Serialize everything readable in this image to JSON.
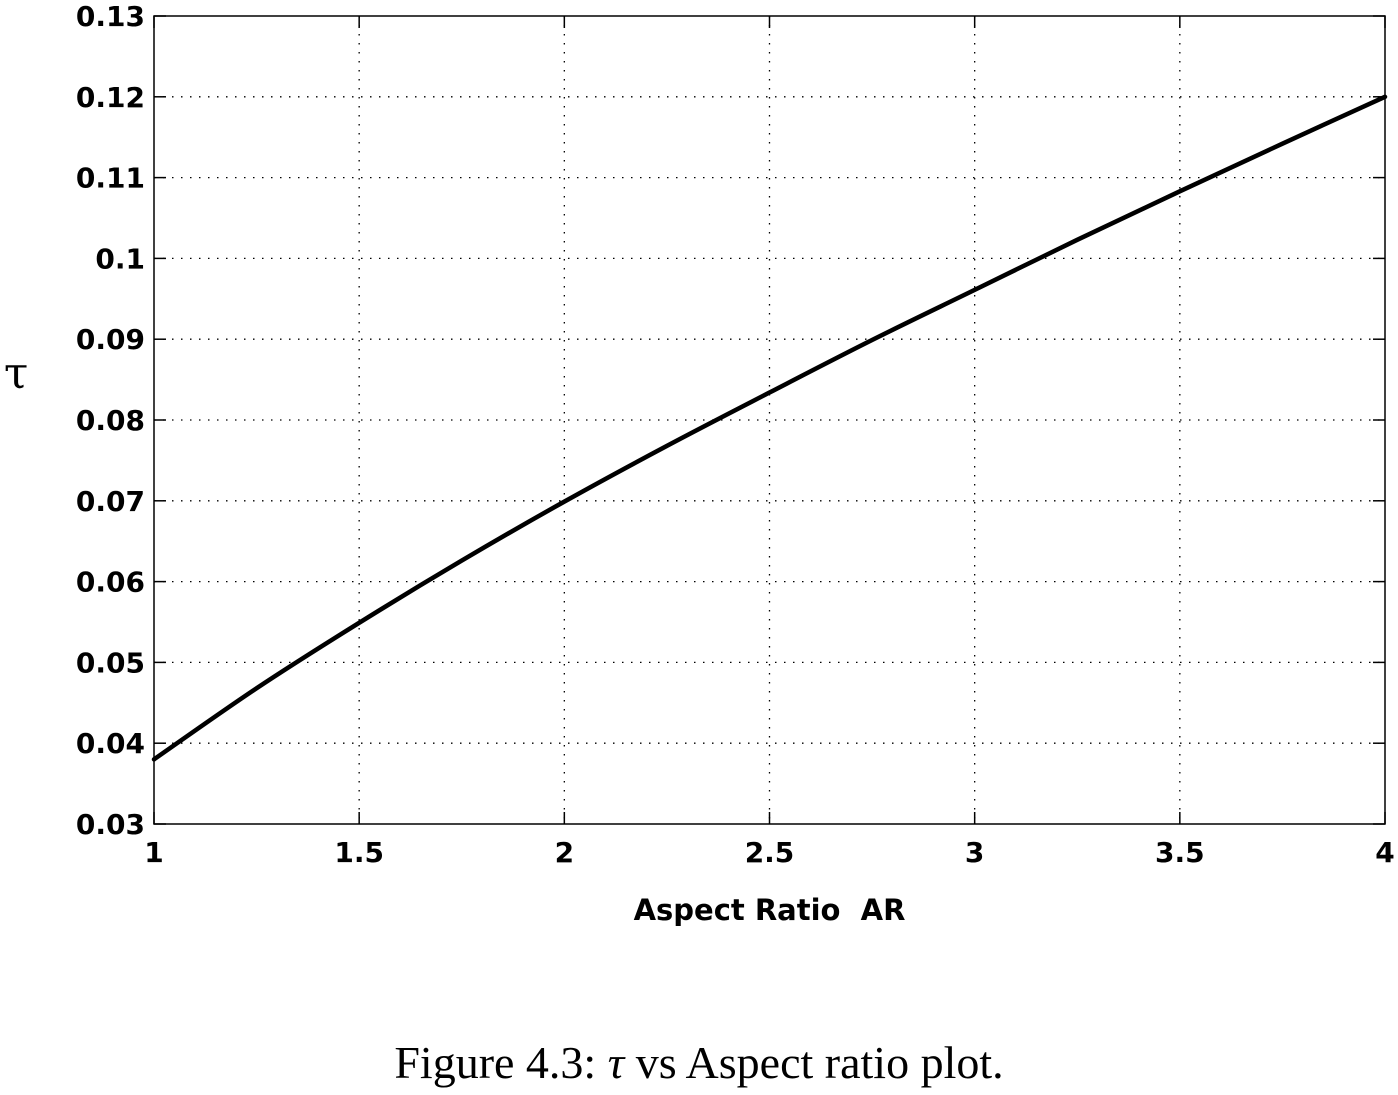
{
  "chart_data": {
    "type": "line",
    "title": "",
    "xlabel": "Aspect Ratio  AR",
    "ylabel": "τ",
    "xlim": [
      1,
      4
    ],
    "ylim": [
      0.03,
      0.13
    ],
    "xticks": [
      1,
      1.5,
      2,
      2.5,
      3,
      3.5,
      4
    ],
    "xtick_labels": [
      "1",
      "1.5",
      "2",
      "2.5",
      "3",
      "3.5",
      "4"
    ],
    "yticks": [
      0.03,
      0.04,
      0.05,
      0.06,
      0.07,
      0.08,
      0.09,
      0.1,
      0.11,
      0.12,
      0.13
    ],
    "ytick_labels": [
      "0.03",
      "0.04",
      "0.05",
      "0.06",
      "0.07",
      "0.08",
      "0.09",
      "0.1",
      "0.11",
      "0.12",
      "0.13"
    ],
    "grid": true,
    "series": [
      {
        "color": "#000000",
        "x": [
          1,
          1.25,
          1.5,
          1.75,
          2,
          2.25,
          2.5,
          2.75,
          3,
          3.25,
          3.5,
          3.75,
          4
        ],
        "y": [
          0.038,
          0.0468,
          0.0549,
          0.0626,
          0.0699,
          0.0768,
          0.0834,
          0.0899,
          0.0961,
          0.1023,
          0.1083,
          0.1142,
          0.12
        ]
      }
    ]
  },
  "caption": {
    "prefix": "Figure 4.3: ",
    "symbol": "τ",
    "suffix": " vs Aspect ratio plot."
  }
}
